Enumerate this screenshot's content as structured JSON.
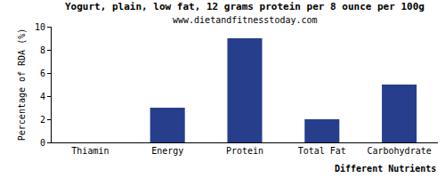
{
  "chart_data": {
    "type": "bar",
    "title": "Yogurt, plain, low fat, 12 grams protein per 8 ounce per 100g",
    "subtitle": "www.dietandfitnesstoday.com",
    "x_label": "Different Nutrients",
    "y_label": "Percentage of RDA (%)",
    "categories": [
      "Thiamin",
      "Energy",
      "Protein",
      "Total Fat",
      "Carbohydrate"
    ],
    "values": [
      0,
      3,
      9,
      2,
      5
    ],
    "color": "#263e8c",
    "ylim": [
      0,
      10
    ],
    "yticks": [
      0,
      2,
      4,
      6,
      8,
      10
    ],
    "grid": false
  }
}
